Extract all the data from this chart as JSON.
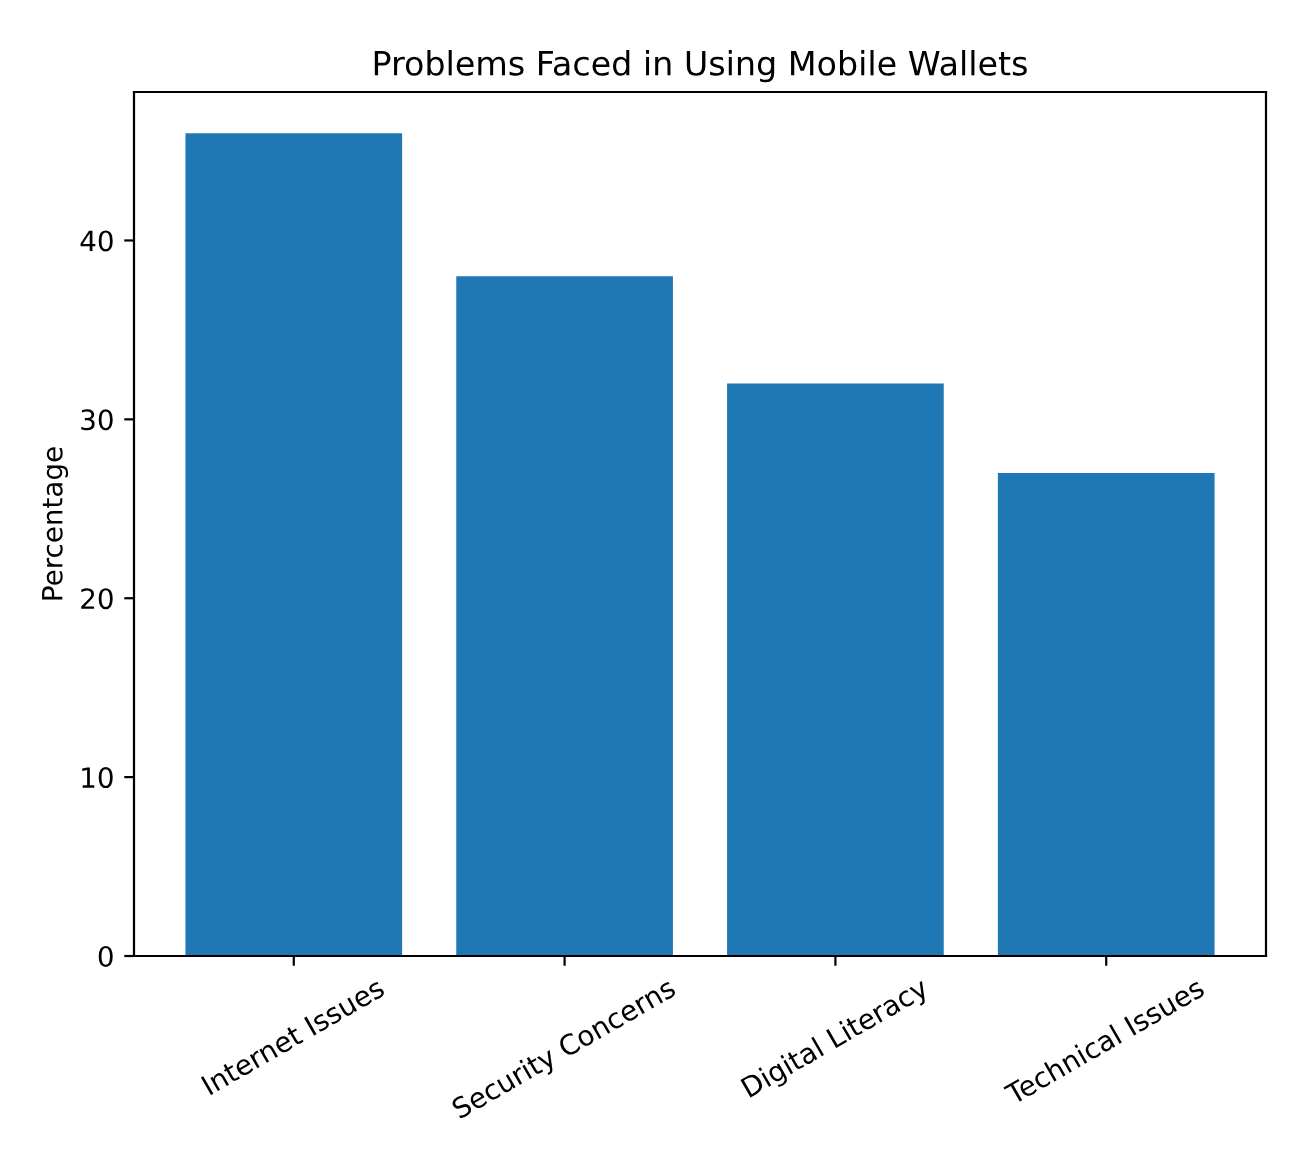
{
  "chart_data": {
    "type": "bar",
    "title": "Problems Faced in Using Mobile Wallets",
    "ylabel": "Percentage",
    "categories": [
      "Internet Issues",
      "Security Concerns",
      "Digital Literacy",
      "Technical Issues"
    ],
    "values": [
      46,
      38,
      32,
      27
    ],
    "color": "#1f77b4",
    "ylim": [
      0,
      48.3
    ],
    "yticks": [
      0,
      10,
      20,
      30,
      40
    ],
    "grid": false
  }
}
